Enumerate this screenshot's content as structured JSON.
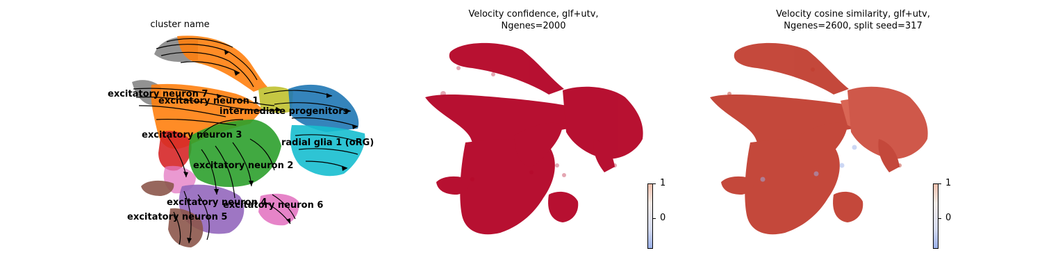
{
  "panels": [
    {
      "title": "cluster name"
    },
    {
      "title": "Velocity confidence, glf+utv,\nNgenes=2000"
    },
    {
      "title": "Velocity cosine similarity, glf+utv,\nNgenes=2600, split seed=317"
    }
  ],
  "chart_data": [
    {
      "type": "scatter",
      "title": "cluster name",
      "categories": [
        "excitatory neuron 7",
        "excitatory neuron 1",
        "intermediate progenitors",
        "excitatory neuron 3",
        "radial glia 1 (oRG)",
        "excitatory neuron 2",
        "excitatory neuron 4",
        "excitatory neuron 6",
        "excitatory neuron 5"
      ],
      "colors": {
        "excitatory neuron 7": "#7f7f7f",
        "excitatory neuron 1": "#ff7f0e",
        "intermediate progenitors": "#1f77b4",
        "excitatory neuron 3": "#d62728",
        "radial glia 1 (oRG)": "#17becf",
        "excitatory neuron 2": "#2ca02c",
        "excitatory neuron 4": "#9467bd",
        "excitatory neuron 6": "#e377c2",
        "excitatory neuron 5": "#8c564b",
        "other": "#bcbd22"
      },
      "overlay": "velocity streamlines",
      "axes_visible": false
    },
    {
      "type": "scatter",
      "title": "Velocity confidence, glf+utv, Ngenes=2000",
      "colorbar": {
        "ticks": [
          "1",
          "0"
        ],
        "cmap": "coolwarm"
      },
      "dominant_color": "#b40426",
      "axes_visible": false
    },
    {
      "type": "scatter",
      "title": "Velocity cosine similarity, glf+utv, Ngenes=2600, split seed=317",
      "colorbar": {
        "ticks": [
          "1",
          "0"
        ],
        "cmap": "coolwarm"
      },
      "dominant_color": "#c0392b",
      "axes_visible": false
    }
  ]
}
